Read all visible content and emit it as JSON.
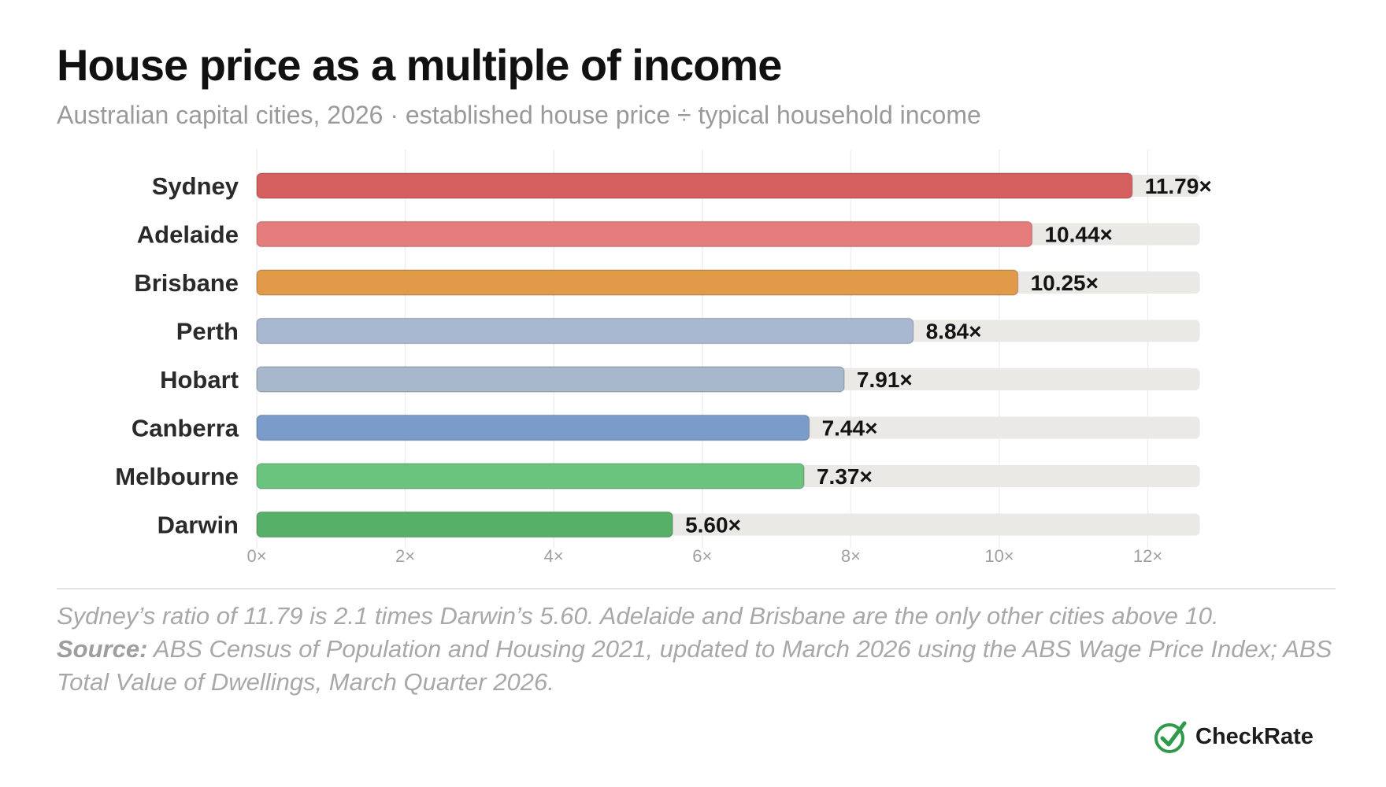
{
  "header": {
    "title": "House price as a multiple of income",
    "subtitle": "Australian capital cities, 2026 · established house price ÷ typical household income"
  },
  "chart_data": {
    "type": "bar",
    "orientation": "horizontal",
    "categories": [
      "Sydney",
      "Adelaide",
      "Brisbane",
      "Perth",
      "Hobart",
      "Canberra",
      "Melbourne",
      "Darwin"
    ],
    "values": [
      11.79,
      10.44,
      10.25,
      8.84,
      7.91,
      7.44,
      7.37,
      5.6
    ],
    "value_labels": [
      "11.79×",
      "10.44×",
      "10.25×",
      "8.84×",
      "7.91×",
      "7.44×",
      "7.37×",
      "5.60×"
    ],
    "bar_colors": [
      "#d55f5f",
      "#e57c7c",
      "#e19a48",
      "#a8b8d0",
      "#a8b8cc",
      "#7b9ccb",
      "#6bc47e",
      "#56b067"
    ],
    "track_color": "#ebe9e6",
    "track_max": 12.7,
    "xlim": [
      0,
      12.7
    ],
    "xticks": [
      0,
      2,
      4,
      6,
      8,
      10,
      12
    ],
    "xtick_labels": [
      "0×",
      "2×",
      "4×",
      "6×",
      "8×",
      "10×",
      "12×"
    ],
    "grid": true,
    "legend": "none"
  },
  "footnote": {
    "text": "Sydney’s ratio of 11.79 is 2.1 times Darwin’s 5.60. Adelaide and Brisbane are the only other cities above 10.",
    "source_label": "Source:",
    "source_text": "ABS Census of Population and Housing 2021, updated to March 2026 using the ABS Wage Price Index; ABS Total Value of Dwellings, March Quarter 2026."
  },
  "brand": {
    "name": "CheckRate",
    "logo_icon": "check-circle-icon",
    "color": "#2e9a4a"
  }
}
